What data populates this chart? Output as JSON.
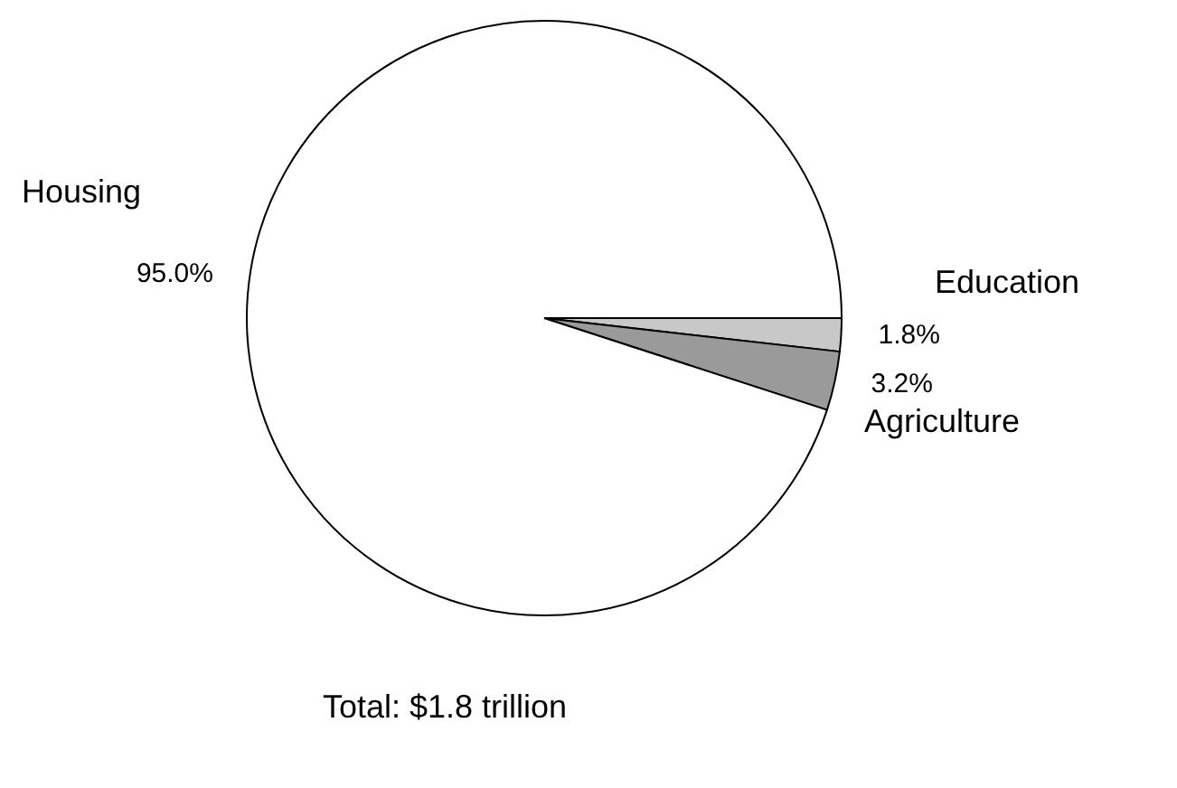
{
  "chart_data": {
    "type": "pie",
    "categories": [
      "Education",
      "Agriculture",
      "Housing"
    ],
    "values": [
      1.8,
      3.2,
      95.0
    ],
    "value_labels": [
      "1.8%",
      "3.2%",
      "95.0%"
    ],
    "colors": [
      "#c8c8c8",
      "#9a9a9a",
      "#ffffff"
    ],
    "legend": false,
    "annotations": [
      "Total: $1.8 trillion"
    ]
  }
}
